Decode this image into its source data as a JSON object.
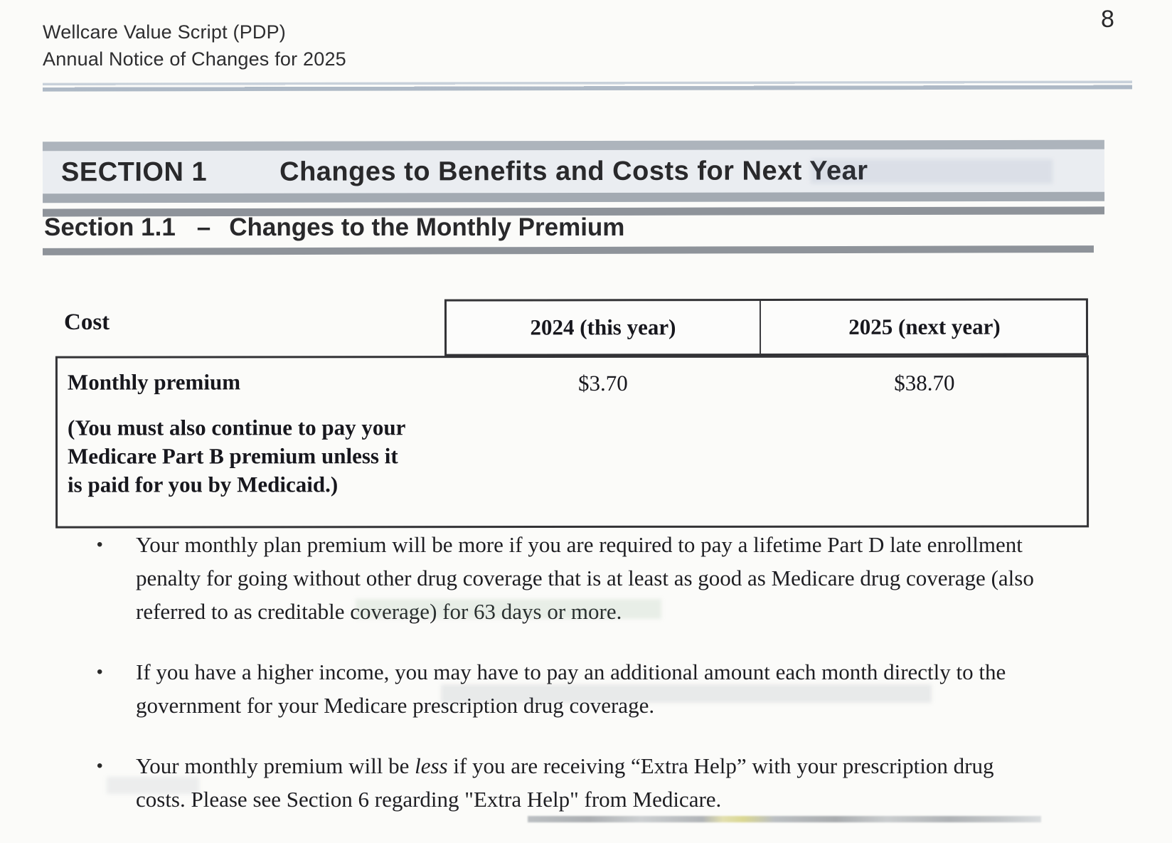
{
  "page_number": "8",
  "header": {
    "line1": "Wellcare Value Script (PDP)",
    "line2": "Annual Notice of Changes for 2025"
  },
  "section_banner": {
    "label": "SECTION 1",
    "title": "Changes to Benefits and Costs for Next Year"
  },
  "subsection": {
    "label": "Section 1.1",
    "separator": "–",
    "title": "Changes to the Monthly Premium"
  },
  "table": {
    "columns": [
      "Cost",
      "2024 (this year)",
      "2025 (next year)"
    ],
    "rows": [
      {
        "label": "Monthly premium",
        "note": "(You must also continue to pay your Medicare Part B premium unless it is paid for you by Medicaid.)",
        "value_2024": "$3.70",
        "value_2025": "$38.70"
      }
    ]
  },
  "bullet_glyph": "•",
  "bullets": [
    {
      "text": "Your monthly plan premium will be more if you are required to pay a lifetime Part D late enrollment penalty for going without other drug coverage that is at least as good as Medicare drug coverage (also referred to as creditable coverage) for 63 days or more."
    },
    {
      "text": "If you have a higher income, you may have to pay an additional amount each month directly to the government for your Medicare prescription drug coverage."
    },
    {
      "before_italic": "Your monthly premium will be ",
      "italic": "less",
      "after_italic": " if you are receiving “Extra Help” with your prescription drug costs. Please see Section 6 regarding \"Extra Help\" from Medicare."
    }
  ],
  "theme": {
    "banner_background": "#eaedf1",
    "banner_band_top": "#adb4bc",
    "banner_band_bottom": "#a3aab2",
    "rule_gray": "#8e939a",
    "header_rule_blue": "#aab6c4",
    "table_border": "#333336",
    "text_color": "#1e1e22",
    "paper_background": "#fbfbf9"
  }
}
